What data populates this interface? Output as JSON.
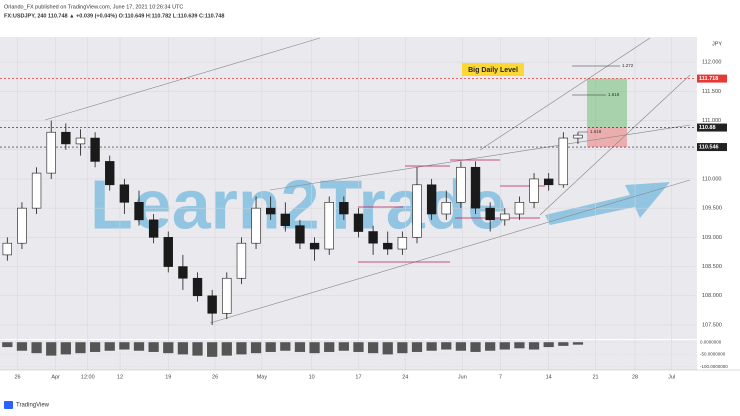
{
  "chart_data": {
    "type": "candlestick",
    "title": "Orlando_FX published on TradingView.com, June 17, 2021 10:26:34 UTC",
    "subtitle": "FX:USDJPY, 240  110.748 ▲ +0.039 (+0.04%)  O:110.649 H:110.782 L:110.639 C:110.748",
    "currency": "JPY",
    "annotation": "Big Daily Level",
    "fib_labels": [
      "1.272",
      "1.618",
      "1.618"
    ],
    "x": [
      0,
      1,
      2,
      3,
      4,
      5,
      6,
      7,
      8,
      9,
      10,
      11,
      12,
      13,
      14,
      15,
      16,
      17,
      18,
      19,
      20,
      21,
      22,
      23,
      24,
      25,
      26,
      27,
      28,
      29,
      30,
      31,
      32,
      33,
      34,
      35,
      36,
      37,
      38,
      39
    ],
    "open": [
      108.7,
      108.9,
      109.5,
      110.1,
      110.8,
      110.6,
      110.7,
      110.3,
      109.9,
      109.6,
      109.3,
      109.0,
      108.5,
      108.3,
      108.0,
      107.7,
      108.3,
      108.9,
      109.5,
      109.4,
      109.2,
      108.9,
      108.8,
      109.6,
      109.4,
      109.1,
      108.9,
      108.8,
      109.0,
      109.9,
      109.4,
      109.6,
      110.2,
      109.5,
      109.3,
      109.4,
      109.6,
      110.0,
      109.9,
      110.7
    ],
    "high": [
      109.0,
      109.6,
      110.2,
      111.0,
      110.95,
      110.85,
      110.8,
      110.4,
      110.0,
      109.8,
      109.4,
      109.1,
      108.7,
      108.4,
      108.1,
      108.4,
      109.0,
      109.7,
      109.7,
      109.6,
      109.3,
      109.0,
      109.7,
      109.7,
      109.5,
      109.2,
      109.1,
      109.1,
      110.2,
      110.0,
      109.8,
      110.3,
      110.3,
      109.6,
      109.5,
      109.7,
      110.1,
      110.1,
      110.8,
      110.8
    ],
    "low": [
      108.6,
      108.8,
      109.4,
      110.0,
      110.5,
      110.4,
      110.2,
      109.8,
      109.4,
      109.2,
      108.9,
      108.4,
      108.1,
      107.9,
      107.5,
      107.6,
      108.2,
      108.8,
      109.3,
      109.1,
      108.8,
      108.6,
      108.7,
      109.3,
      109.0,
      108.7,
      108.7,
      108.7,
      108.9,
      109.3,
      109.3,
      109.5,
      109.4,
      109.1,
      109.2,
      109.3,
      109.5,
      109.8,
      109.85,
      110.6
    ],
    "close": [
      108.9,
      109.5,
      110.1,
      110.8,
      110.6,
      110.7,
      110.3,
      109.9,
      109.6,
      109.3,
      109.0,
      108.5,
      108.3,
      108.0,
      107.7,
      108.3,
      108.9,
      109.5,
      109.4,
      109.2,
      108.9,
      108.8,
      109.6,
      109.4,
      109.1,
      108.9,
      108.8,
      109.0,
      109.9,
      109.4,
      109.6,
      110.2,
      109.5,
      109.3,
      109.4,
      109.6,
      110.0,
      109.9,
      110.7,
      110.75
    ],
    "up_color": "#ffffff",
    "down_color": "#1a1a1a",
    "xlim": [
      -0.5,
      47
    ],
    "xticks": [
      {
        "value": 0.7,
        "label": "26"
      },
      {
        "value": 3.3,
        "label": "Apr"
      },
      {
        "value": 5.5,
        "label": "12:00"
      },
      {
        "value": 7.7,
        "label": "12"
      },
      {
        "value": 11,
        "label": "19"
      },
      {
        "value": 14.2,
        "label": "26"
      },
      {
        "value": 17.4,
        "label": "May"
      },
      {
        "value": 20.8,
        "label": "10"
      },
      {
        "value": 24,
        "label": "17"
      },
      {
        "value": 27.2,
        "label": "24"
      },
      {
        "value": 31.1,
        "label": "Jun"
      },
      {
        "value": 33.7,
        "label": "7"
      },
      {
        "value": 37,
        "label": "14"
      },
      {
        "value": 40.2,
        "label": "21"
      },
      {
        "value": 42.9,
        "label": "28"
      },
      {
        "value": 45.4,
        "label": "Jul"
      }
    ],
    "ylim": [
      107.26,
      112.43
    ],
    "yticks": [
      {
        "value": 107.5,
        "label": "107.500"
      },
      {
        "value": 108,
        "label": "108.000"
      },
      {
        "value": 108.5,
        "label": "108.500"
      },
      {
        "value": 109,
        "label": "109.000"
      },
      {
        "value": 109.5,
        "label": "109.500"
      },
      {
        "value": 110,
        "label": "110.000"
      },
      {
        "value": 110.5,
        "label": "110.500"
      },
      {
        "value": 111,
        "label": "111.000"
      },
      {
        "value": 111.5,
        "label": "111.500"
      },
      {
        "value": 112,
        "label": "112.000"
      }
    ],
    "grid": true,
    "levels": [
      {
        "value": 111.718,
        "color": "#e53935"
      },
      {
        "value": 110.88,
        "color": "#222222"
      },
      {
        "value": 110.546,
        "color": "#222222"
      }
    ],
    "oscillator": {
      "values": [
        -20,
        -35,
        -45,
        -55,
        -50,
        -45,
        -40,
        -35,
        -30,
        -35,
        -40,
        -45,
        -50,
        -55,
        -60,
        -55,
        -50,
        -45,
        -40,
        -35,
        -40,
        -45,
        -40,
        -35,
        -40,
        -45,
        -50,
        -45,
        -40,
        -35,
        -30,
        -35,
        -40,
        -35,
        -30,
        -25,
        -30,
        -20,
        -15,
        -10
      ],
      "ylim": [
        -110,
        5
      ],
      "yticks": [
        {
          "value": 0,
          "label": "0.0000000"
        },
        {
          "value": -50,
          "label": "-50.0000000"
        },
        {
          "value": -100,
          "label": "-100.0000000"
        }
      ],
      "color": "#555555"
    }
  },
  "watermark": "Learn2Trade",
  "footer": "TradingView"
}
